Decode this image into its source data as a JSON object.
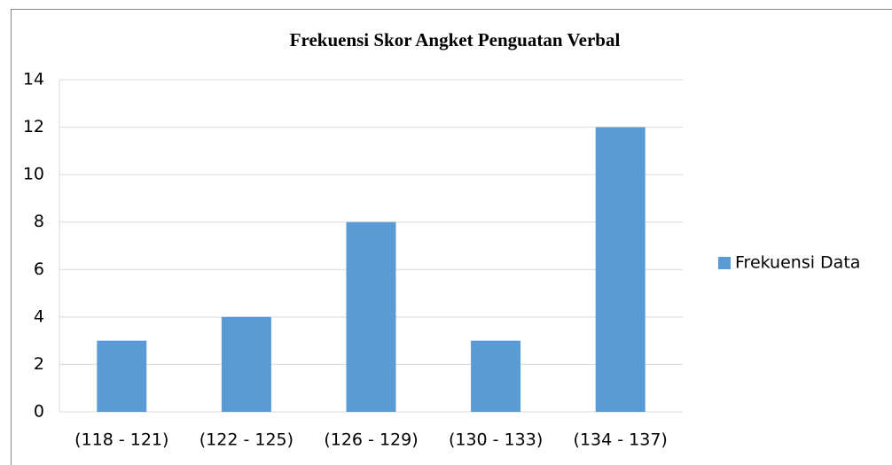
{
  "chart_data": {
    "type": "bar",
    "title": "Frekuensi Skor Angket Penguatan Verbal",
    "categories": [
      "(118 - 121)",
      "(122 - 125)",
      "(126 - 129)",
      "(130 - 133)",
      "(134 - 137)"
    ],
    "series": [
      {
        "name": "Frekuensi Data",
        "color": "#5b9bd5",
        "values": [
          3,
          4,
          8,
          3,
          12
        ]
      }
    ],
    "ylim": [
      0,
      14
    ],
    "yticks": [
      0,
      2,
      4,
      6,
      8,
      10,
      12,
      14
    ],
    "grid": true,
    "legend": "right"
  }
}
